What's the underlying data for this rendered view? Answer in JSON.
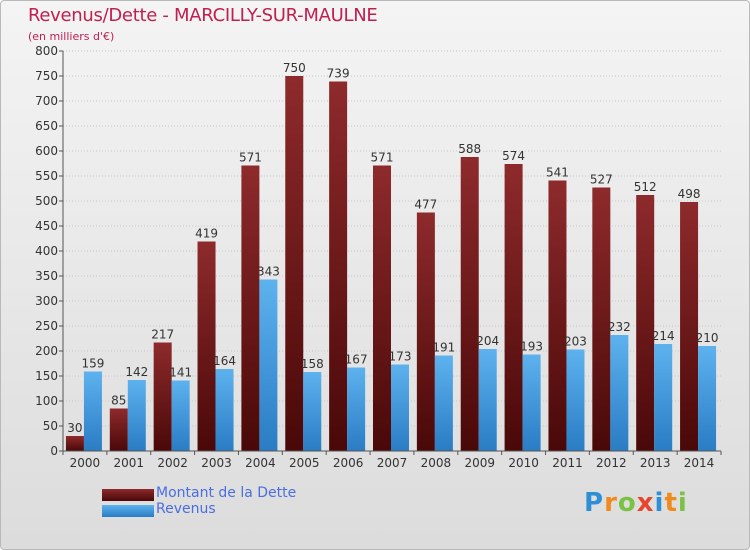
{
  "header": {
    "title": "Revenus/Dette - MARCILLY-SUR-MAULNE",
    "subtitle": "(en milliers d'€)"
  },
  "legend": {
    "items": [
      {
        "label": "Montant de la Dette",
        "color": "#6b1416"
      },
      {
        "label": "Revenus",
        "color": "#3a98e0"
      }
    ]
  },
  "logo": {
    "letters": [
      {
        "char": "P",
        "color": "#2e8fd6"
      },
      {
        "char": "r",
        "color": "#f08a1c"
      },
      {
        "char": "o",
        "color": "#7bc143"
      },
      {
        "char": "x",
        "color": "#e8452c"
      },
      {
        "char": "i",
        "color": "#2e8fd6"
      },
      {
        "char": "t",
        "color": "#f08a1c"
      },
      {
        "char": "i",
        "color": "#7bc143"
      }
    ]
  },
  "chart_data": {
    "type": "bar",
    "title": "Revenus/Dette - MARCILLY-SUR-MAULNE",
    "ylabel": "(en milliers d'€)",
    "xlabel": "",
    "ylim": [
      0,
      800
    ],
    "ytick_step": 50,
    "grid": true,
    "legend_position": "bottom-left",
    "categories": [
      "2000",
      "2001",
      "2002",
      "2003",
      "2004",
      "2005",
      "2006",
      "2007",
      "2008",
      "2009",
      "2010",
      "2011",
      "2012",
      "2013",
      "2014"
    ],
    "series": [
      {
        "name": "Montant de la Dette",
        "color": "#7a1a1c",
        "values": [
          30,
          85,
          217,
          419,
          571,
          750,
          739,
          571,
          477,
          588,
          574,
          541,
          527,
          512,
          498
        ]
      },
      {
        "name": "Revenus",
        "color": "#3d9ee3",
        "values": [
          159,
          142,
          141,
          164,
          343,
          158,
          167,
          173,
          191,
          204,
          193,
          203,
          232,
          214,
          210
        ]
      }
    ]
  }
}
